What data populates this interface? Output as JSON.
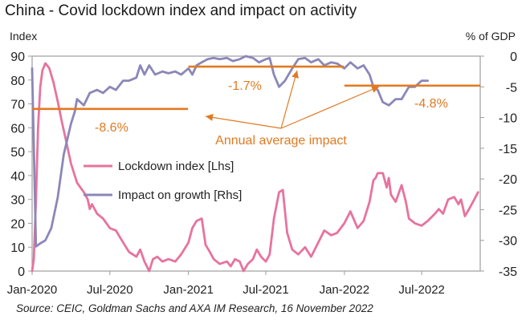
{
  "title": "China - Covid lockdown index and impact on activity",
  "source": "Source: CEIC, Goldman Sachs and AXA IM Research, 16 November 2022",
  "colors": {
    "lockdown": "#e7739e",
    "growth": "#8b87b8",
    "annotation": "#e07a22",
    "frame": "#9e9e9e"
  },
  "chart_data": {
    "type": "line",
    "left_axis": {
      "label": "Index",
      "range": [
        0,
        90
      ],
      "ticks": [
        0,
        10,
        20,
        30,
        40,
        50,
        60,
        70,
        80,
        90
      ]
    },
    "right_axis": {
      "label": "% of GDP",
      "range": [
        -35,
        0
      ],
      "ticks": [
        0,
        -5,
        -10,
        -15,
        -20,
        -25,
        -30,
        -35
      ]
    },
    "x_axis": {
      "type": "date",
      "range": [
        "2020-01-01",
        "2022-11-15"
      ],
      "tick_labels": [
        "Jan-2020",
        "Jul-2020",
        "Jan-2021",
        "Jul-2021",
        "Jan-2022",
        "Jul-2022"
      ],
      "tick_dates": [
        "2020-01-01",
        "2020-07-01",
        "2021-01-01",
        "2021-07-01",
        "2022-01-01",
        "2022-07-01"
      ]
    },
    "legend": {
      "placement": "center-left"
    },
    "series": [
      {
        "name": "Lockdown index [Lhs]",
        "axis": "left",
        "points": [
          [
            "2020-01-01",
            0
          ],
          [
            "2020-01-05",
            5
          ],
          [
            "2020-01-10",
            30
          ],
          [
            "2020-01-15",
            60
          ],
          [
            "2020-01-20",
            77
          ],
          [
            "2020-01-25",
            84
          ],
          [
            "2020-02-01",
            87
          ],
          [
            "2020-02-10",
            85
          ],
          [
            "2020-02-20",
            79
          ],
          [
            "2020-03-01",
            71
          ],
          [
            "2020-03-10",
            63
          ],
          [
            "2020-03-20",
            55
          ],
          [
            "2020-04-01",
            45
          ],
          [
            "2020-04-15",
            37
          ],
          [
            "2020-05-01",
            33
          ],
          [
            "2020-05-10",
            30
          ],
          [
            "2020-05-15",
            26
          ],
          [
            "2020-05-20",
            28
          ],
          [
            "2020-06-01",
            24
          ],
          [
            "2020-06-15",
            22
          ],
          [
            "2020-07-01",
            18
          ],
          [
            "2020-07-15",
            17
          ],
          [
            "2020-08-01",
            12
          ],
          [
            "2020-08-15",
            8
          ],
          [
            "2020-09-01",
            6
          ],
          [
            "2020-09-10",
            9
          ],
          [
            "2020-09-20",
            4
          ],
          [
            "2020-10-01",
            0
          ],
          [
            "2020-10-10",
            5
          ],
          [
            "2020-10-20",
            6
          ],
          [
            "2020-11-01",
            4
          ],
          [
            "2020-11-15",
            5
          ],
          [
            "2020-12-01",
            4
          ],
          [
            "2020-12-15",
            7
          ],
          [
            "2021-01-01",
            12
          ],
          [
            "2021-01-10",
            18
          ],
          [
            "2021-01-20",
            21
          ],
          [
            "2021-02-01",
            22
          ],
          [
            "2021-02-10",
            11
          ],
          [
            "2021-02-20",
            8
          ],
          [
            "2021-03-01",
            5
          ],
          [
            "2021-03-15",
            3
          ],
          [
            "2021-04-01",
            4
          ],
          [
            "2021-04-10",
            2
          ],
          [
            "2021-04-20",
            5
          ],
          [
            "2021-05-01",
            4
          ],
          [
            "2021-05-10",
            0
          ],
          [
            "2021-05-20",
            3
          ],
          [
            "2021-06-01",
            5
          ],
          [
            "2021-06-10",
            9
          ],
          [
            "2021-06-20",
            6
          ],
          [
            "2021-07-01",
            4
          ],
          [
            "2021-07-10",
            7
          ],
          [
            "2021-07-20",
            22
          ],
          [
            "2021-08-01",
            33
          ],
          [
            "2021-08-10",
            34
          ],
          [
            "2021-08-20",
            16
          ],
          [
            "2021-09-01",
            9
          ],
          [
            "2021-09-15",
            7
          ],
          [
            "2021-10-01",
            10
          ],
          [
            "2021-10-15",
            6
          ],
          [
            "2021-11-01",
            12
          ],
          [
            "2021-11-15",
            17
          ],
          [
            "2021-12-01",
            15
          ],
          [
            "2021-12-15",
            16
          ],
          [
            "2022-01-01",
            20
          ],
          [
            "2022-01-15",
            25
          ],
          [
            "2022-02-01",
            18
          ],
          [
            "2022-02-15",
            21
          ],
          [
            "2022-03-01",
            29
          ],
          [
            "2022-03-10",
            38
          ],
          [
            "2022-03-15",
            39
          ],
          [
            "2022-03-20",
            41
          ],
          [
            "2022-04-01",
            41
          ],
          [
            "2022-04-10",
            35
          ],
          [
            "2022-04-15",
            39
          ],
          [
            "2022-04-20",
            32
          ],
          [
            "2022-05-01",
            29
          ],
          [
            "2022-05-15",
            36
          ],
          [
            "2022-05-25",
            29
          ],
          [
            "2022-06-01",
            22
          ],
          [
            "2022-06-15",
            20
          ],
          [
            "2022-07-01",
            19
          ],
          [
            "2022-07-15",
            21
          ],
          [
            "2022-08-01",
            24
          ],
          [
            "2022-08-10",
            26
          ],
          [
            "2022-08-20",
            24
          ],
          [
            "2022-09-01",
            30
          ],
          [
            "2022-09-15",
            31
          ],
          [
            "2022-09-25",
            28
          ],
          [
            "2022-10-01",
            30
          ],
          [
            "2022-10-10",
            23
          ],
          [
            "2022-10-20",
            26
          ],
          [
            "2022-11-01",
            30
          ],
          [
            "2022-11-10",
            33
          ]
        ]
      },
      {
        "name": "Impact on growth [Rhs]",
        "axis": "right",
        "points": [
          [
            "2020-01-01",
            -2
          ],
          [
            "2020-01-10",
            -31
          ],
          [
            "2020-01-20",
            -30.5
          ],
          [
            "2020-02-01",
            -30
          ],
          [
            "2020-02-15",
            -28
          ],
          [
            "2020-03-01",
            -23
          ],
          [
            "2020-03-15",
            -16
          ],
          [
            "2020-04-01",
            -11
          ],
          [
            "2020-04-10",
            -9
          ],
          [
            "2020-04-15",
            -7
          ],
          [
            "2020-05-01",
            -8
          ],
          [
            "2020-05-15",
            -6
          ],
          [
            "2020-06-01",
            -5.5
          ],
          [
            "2020-06-15",
            -6
          ],
          [
            "2020-07-01",
            -5
          ],
          [
            "2020-07-15",
            -5.5
          ],
          [
            "2020-08-01",
            -4
          ],
          [
            "2020-08-15",
            -4
          ],
          [
            "2020-09-01",
            -3.5
          ],
          [
            "2020-09-10",
            -1.5
          ],
          [
            "2020-09-20",
            -3
          ],
          [
            "2020-10-01",
            -1.5
          ],
          [
            "2020-10-15",
            -3
          ],
          [
            "2020-11-01",
            -2.5
          ],
          [
            "2020-11-15",
            -2.8
          ],
          [
            "2020-12-01",
            -2.5
          ],
          [
            "2020-12-15",
            -3
          ],
          [
            "2021-01-01",
            -2
          ],
          [
            "2021-01-10",
            -3
          ],
          [
            "2021-01-20",
            -1.5
          ],
          [
            "2021-02-01",
            -1
          ],
          [
            "2021-02-15",
            -0.5
          ],
          [
            "2021-03-01",
            -0.3
          ],
          [
            "2021-03-15",
            -0.5
          ],
          [
            "2021-04-01",
            -0.3
          ],
          [
            "2021-04-15",
            -0.8
          ],
          [
            "2021-05-01",
            -0.5
          ],
          [
            "2021-05-15",
            0
          ],
          [
            "2021-06-01",
            -0.3
          ],
          [
            "2021-06-15",
            -1
          ],
          [
            "2021-07-01",
            -0.5
          ],
          [
            "2021-07-10",
            -0.3
          ],
          [
            "2021-07-20",
            -3
          ],
          [
            "2021-08-01",
            -5
          ],
          [
            "2021-08-15",
            -4
          ],
          [
            "2021-09-01",
            -2
          ],
          [
            "2021-09-15",
            -0.5
          ],
          [
            "2021-10-01",
            -0.3
          ],
          [
            "2021-10-15",
            -1
          ],
          [
            "2021-11-01",
            -0.5
          ],
          [
            "2021-11-15",
            -1.5
          ],
          [
            "2021-12-01",
            -1
          ],
          [
            "2021-12-15",
            -1.2
          ],
          [
            "2022-01-01",
            -2
          ],
          [
            "2022-01-15",
            -1
          ],
          [
            "2022-02-01",
            -2
          ],
          [
            "2022-02-15",
            -1.5
          ],
          [
            "2022-03-01",
            -3
          ],
          [
            "2022-03-10",
            -5
          ],
          [
            "2022-03-20",
            -5.5
          ],
          [
            "2022-04-01",
            -7.5
          ],
          [
            "2022-04-15",
            -8
          ],
          [
            "2022-05-01",
            -7
          ],
          [
            "2022-05-15",
            -7
          ],
          [
            "2022-06-01",
            -5
          ],
          [
            "2022-06-15",
            -5
          ],
          [
            "2022-07-01",
            -4
          ],
          [
            "2022-07-15",
            -4
          ]
        ]
      }
    ],
    "annotations": {
      "label": "Annual average impact",
      "segments": [
        {
          "label": "-8.6%",
          "start": "2020-01-01",
          "end": "2020-12-31",
          "value": -8.6
        },
        {
          "label": "-1.7%",
          "start": "2021-01-01",
          "end": "2021-12-31",
          "value": -1.7
        },
        {
          "label": "-4.8%",
          "start": "2022-01-01",
          "end": "2022-11-15",
          "value": -4.8
        }
      ]
    }
  }
}
